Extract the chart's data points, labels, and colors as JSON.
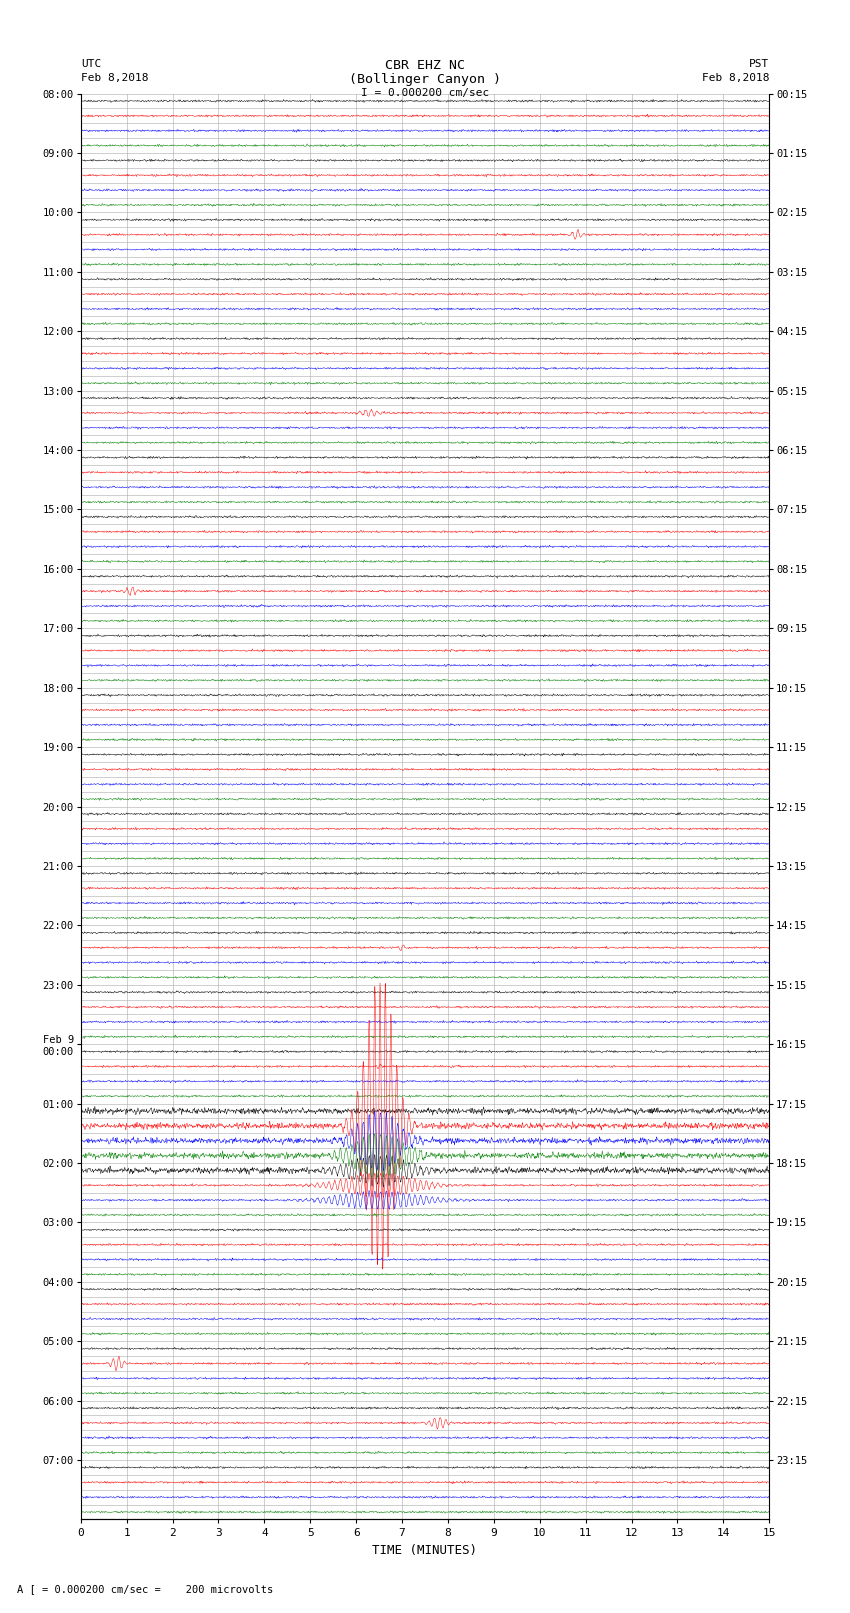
{
  "title_line1": "CBR EHZ NC",
  "title_line2": "(Bollinger Canyon )",
  "scale_text": "I = 0.000200 cm/sec",
  "footer_text": "A [ = 0.000200 cm/sec =    200 microvolts",
  "utc_label": "UTC",
  "utc_date": "Feb 8,2018",
  "pst_label": "PST",
  "pst_date": "Feb 8,2018",
  "xlabel": "TIME (MINUTES)",
  "xmin": 0,
  "xmax": 15,
  "xticks": [
    0,
    1,
    2,
    3,
    4,
    5,
    6,
    7,
    8,
    9,
    10,
    11,
    12,
    13,
    14,
    15
  ],
  "left_labels_even": [
    "08:00",
    "09:00",
    "10:00",
    "11:00",
    "12:00",
    "13:00",
    "14:00",
    "15:00",
    "16:00",
    "17:00",
    "18:00",
    "19:00",
    "20:00",
    "21:00",
    "22:00",
    "23:00",
    "Feb 9\n00:00",
    "01:00",
    "02:00",
    "03:00",
    "04:00",
    "05:00",
    "06:00",
    "07:00"
  ],
  "right_labels_even": [
    "00:15",
    "01:15",
    "02:15",
    "03:15",
    "04:15",
    "05:15",
    "06:15",
    "07:15",
    "08:15",
    "09:15",
    "10:15",
    "11:15",
    "12:15",
    "13:15",
    "14:15",
    "15:15",
    "16:15",
    "17:15",
    "18:15",
    "19:15",
    "20:15",
    "21:15",
    "22:15",
    "23:15"
  ],
  "trace_colors": [
    "black",
    "red",
    "blue",
    "green"
  ],
  "num_rows": 96,
  "noise_amplitude": 0.03,
  "background_color": "white",
  "grid_color": "#aaaaaa"
}
